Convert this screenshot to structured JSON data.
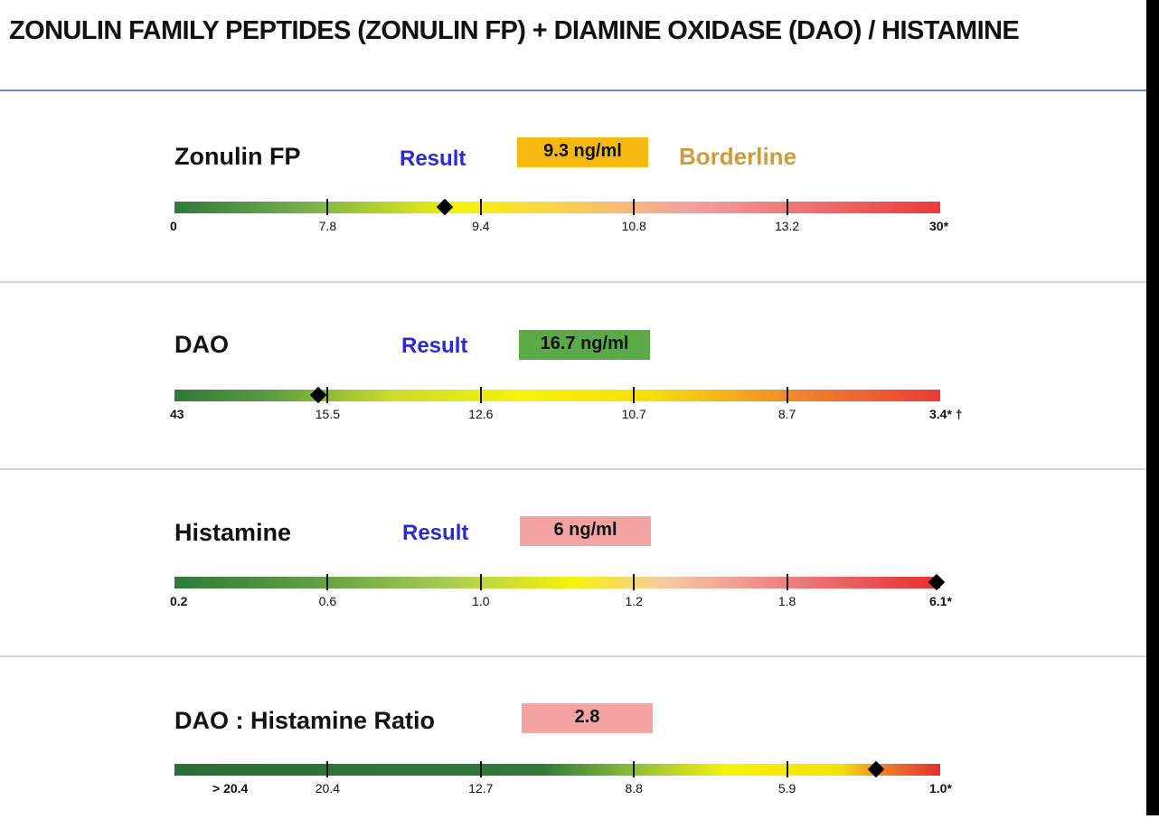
{
  "page": {
    "title": "ZONULIN FAMILY PEPTIDES (ZONULIN FP) + DIAMINE OXIDASE (DAO) / HISTAMINE"
  },
  "colors": {
    "title_rule": "#5b8fd0",
    "result_label": "#2a2ad8",
    "status_borderline": "#d19a3a",
    "result_borderline": "#f7b80f",
    "result_normal": "#5aaa47",
    "result_high": "#f4a3a3"
  },
  "sections": [
    {
      "name": "Zonulin FP",
      "result_label": "Result",
      "result_value": "9.3 ng/ml",
      "result_color": "#f7b80f",
      "status": "Borderline",
      "status_color": "#d19a3a",
      "gradient": "linear-gradient(to right, #2f7a3a 0%, #7ab34c 18%, #f6f20a 37%, #fbd24a 50%, #f2a2a2 67%, #ec3a3a 100%)",
      "ticks": [
        "0",
        "7.8",
        "9.4",
        "10.8",
        "13.2",
        "30*"
      ],
      "marker_fraction": 0.353
    },
    {
      "name": "DAO",
      "result_label": "Result",
      "result_value": "16.7 ng/ml",
      "result_color": "#5aaa47",
      "status": "",
      "status_color": "#d19a3a",
      "gradient": "linear-gradient(to right, #2f7a3a 0%, #5a9a40 12%, #c8dc2a 28%, #f6f20a 45%, #f5e00a 62%, #f28b2a 80%, #ec3a3a 100%)",
      "ticks": [
        "43",
        "15.5",
        "12.6",
        "10.7",
        "8.7",
        "3.4* †"
      ],
      "marker_fraction": 0.188
    },
    {
      "name": "Histamine",
      "result_label": "Result",
      "result_value": "6 ng/ml",
      "result_color": "#f4a3a3",
      "status": "",
      "status_color": "#d19a3a",
      "gradient": "linear-gradient(to right, #2f7a3a 0%, #5f9e43 18%, #a9cd55 36%, #f6f20a 52%, #f6c9a4 64%, #ee8080 80%, #e52e2e 100%)",
      "ticks": [
        "0.2",
        "0.6",
        "1.0",
        "1.2",
        "1.8",
        "6.1*"
      ],
      "marker_fraction": 0.995
    },
    {
      "name": "DAO : Histamine Ratio",
      "result_label": "",
      "result_value": "2.8",
      "result_color": "#f4a3a3",
      "status": "",
      "status_color": "#d19a3a",
      "gradient": "linear-gradient(to right, #2b6e35 0%, #2f7a3a 48%, #8fbd3a 60%, #f6f20a 72%, #f5e00a 87%, #f07a2a 93%, #e52e2e 100%)",
      "ticks": [
        "> 20.4",
        "20.4",
        "12.7",
        "8.8",
        "5.9",
        "1.0*"
      ],
      "marker_fraction": 0.916
    }
  ]
}
